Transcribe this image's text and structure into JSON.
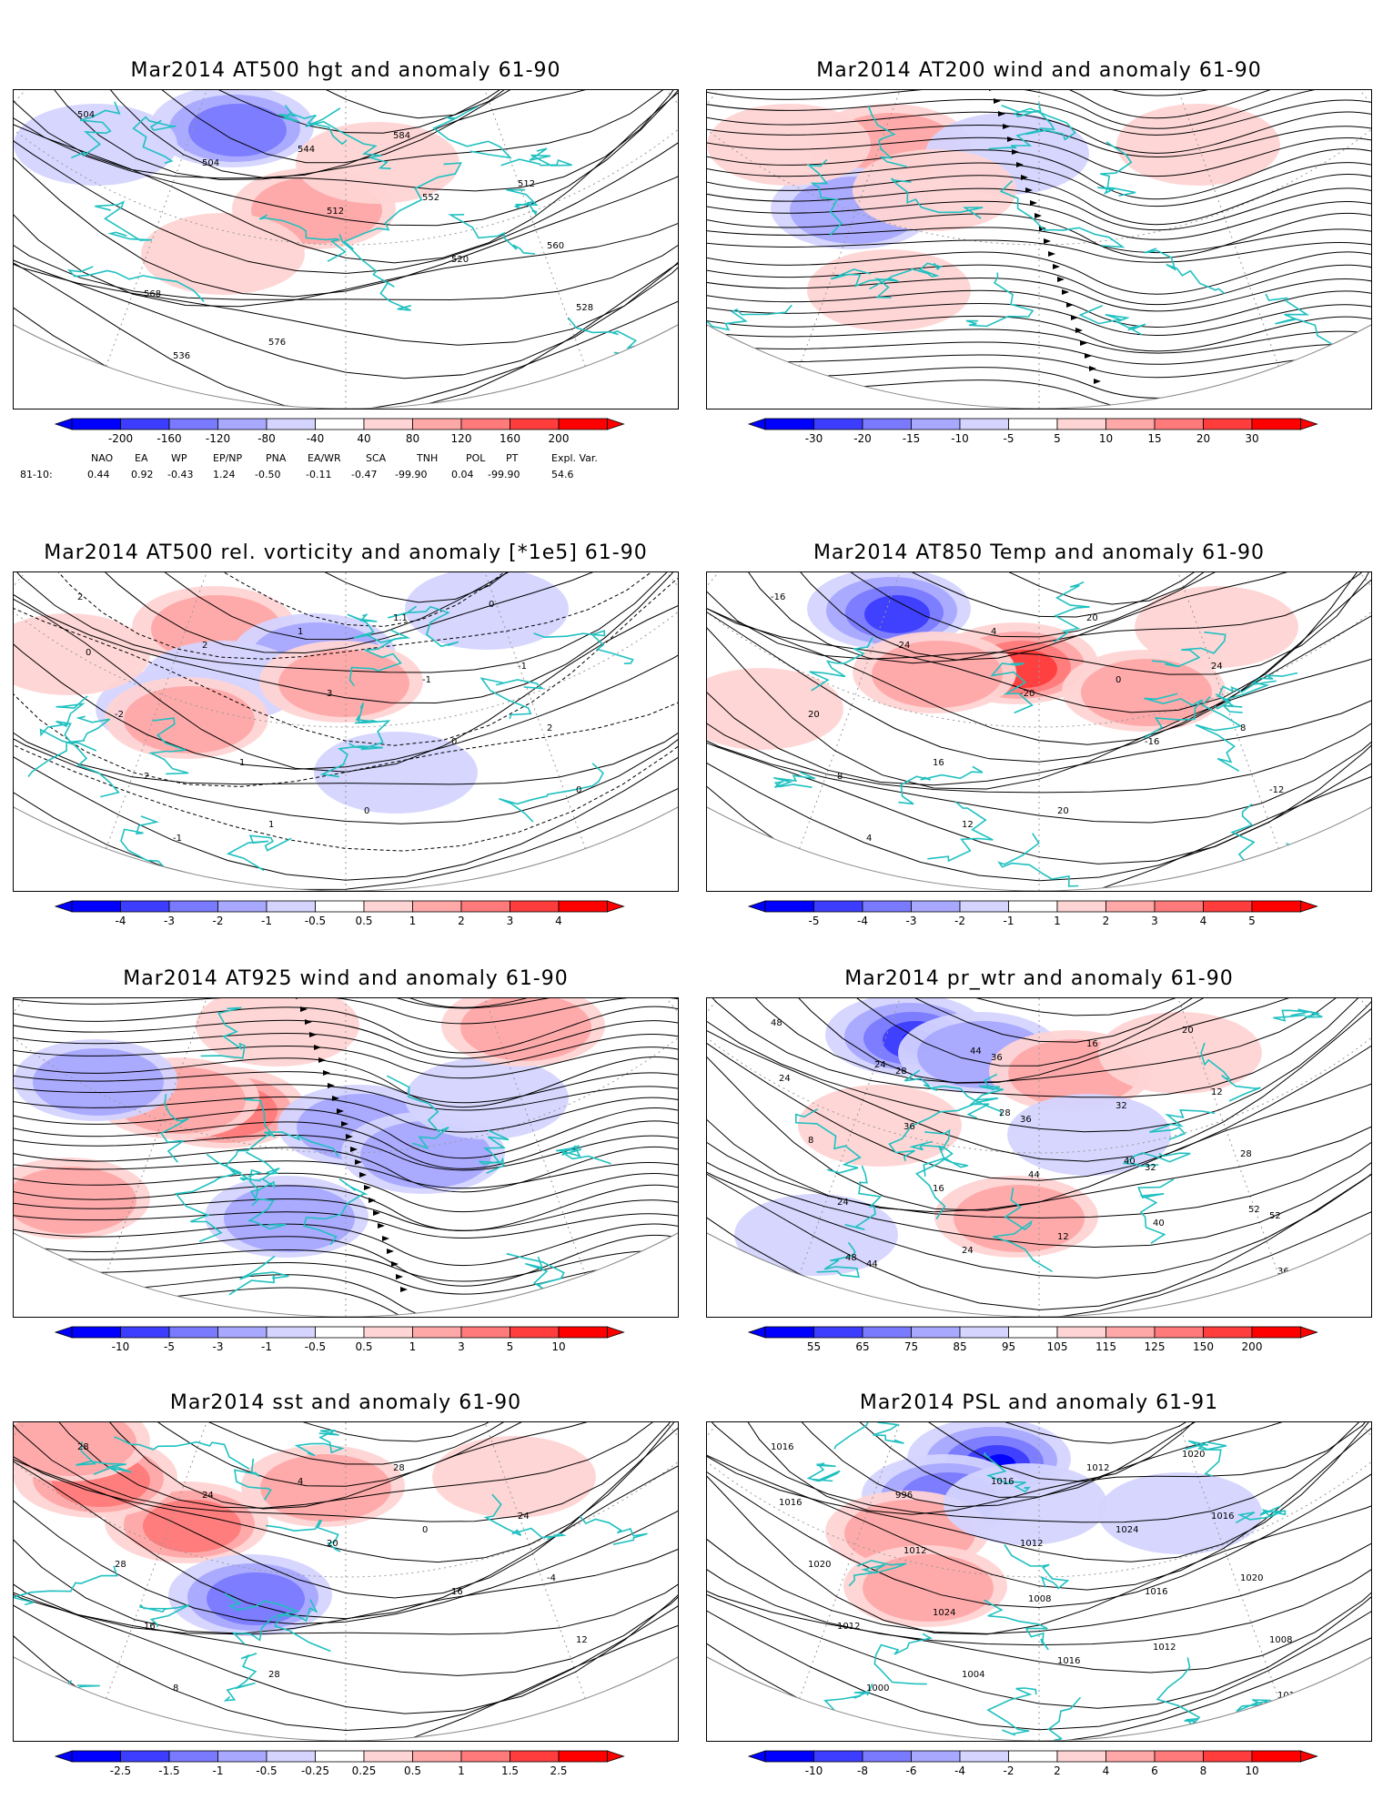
{
  "panels": [
    {
      "id": "p1",
      "title": "Mar2014 AT500 hgt and anomaly 61-90",
      "contour_labels": [
        "504",
        "504",
        "512",
        "520",
        "528",
        "536",
        "544",
        "552",
        "560",
        "568",
        "576",
        "584",
        "512"
      ],
      "colorbar": {
        "labels": [
          "-200",
          "-160",
          "-120",
          "-80",
          "-40",
          "40",
          "80",
          "120",
          "160",
          "200"
        ]
      }
    },
    {
      "id": "p2",
      "title": "Mar2014 AT200 wind and anomaly 61-90",
      "contour_labels": [],
      "colorbar": {
        "labels": [
          "-30",
          "-20",
          "-15",
          "-10",
          "-5",
          "5",
          "10",
          "15",
          "20",
          "30"
        ]
      }
    },
    {
      "id": "p3",
      "title": "Mar2014 AT500 rel. vorticity and anomaly [*1e5] 61-90",
      "contour_labels": [
        "2",
        "2",
        "3",
        "0",
        "0",
        "-1",
        "1",
        "-1",
        "2",
        "2",
        "1",
        "1.1",
        "-1",
        "-2",
        "1",
        "0",
        "0",
        "0"
      ],
      "colorbar": {
        "labels": [
          "-4",
          "-3",
          "-2",
          "-1",
          "-0.5",
          "0.5",
          "1",
          "2",
          "3",
          "4"
        ]
      }
    },
    {
      "id": "p4",
      "title": "Mar2014 AT850 Temp and anomaly 61-90",
      "contour_labels": [
        "-16",
        "-24",
        "-20",
        "-16",
        "-12",
        "4",
        "4",
        "0",
        "8",
        "8",
        "12",
        "20",
        "24",
        "20",
        "16",
        "20"
      ],
      "colorbar": {
        "labels": [
          "-5",
          "-4",
          "-3",
          "-2",
          "-1",
          "1",
          "2",
          "3",
          "4",
          "5"
        ]
      }
    },
    {
      "id": "p5",
      "title": "Mar2014 AT925 wind and anomaly 61-90",
      "contour_labels": [],
      "colorbar": {
        "labels": [
          "-10",
          "-5",
          "-3",
          "-1",
          "-0.5",
          "0.5",
          "1",
          "3",
          "5",
          "10"
        ]
      }
    },
    {
      "id": "p6",
      "title": "Mar2014 pr_wtr and anomaly 61-90",
      "contour_labels": [
        "48",
        "28",
        "36",
        "32",
        "52",
        "44",
        "36",
        "32",
        "28",
        "24",
        "24",
        "16",
        "12",
        "8",
        "16",
        "12",
        "20",
        "24",
        "36",
        "44",
        "40",
        "36",
        "24",
        "28",
        "40",
        "52",
        "48",
        "44"
      ],
      "colorbar": {
        "labels": [
          "55",
          "65",
          "75",
          "85",
          "95",
          "105",
          "115",
          "125",
          "150",
          "200"
        ]
      }
    },
    {
      "id": "p7",
      "title": "Mar2014 sst and anomaly 61-90",
      "contour_labels": [
        "28",
        "24",
        "20",
        "16",
        "12",
        "8",
        "4",
        "0",
        "-4",
        "16",
        "28",
        "28",
        "24",
        "28"
      ],
      "colorbar": {
        "labels": [
          "-2.5",
          "-1.5",
          "-1",
          "-0.5",
          "-0.25",
          "0.25",
          "0.5",
          "1",
          "1.5",
          "2.5"
        ]
      }
    },
    {
      "id": "p8",
      "title": "Mar2014 PSL and anomaly 61-91",
      "contour_labels": [
        "1016",
        "996",
        "1012",
        "1016",
        "1008",
        "1000",
        "1016",
        "1024",
        "1020",
        "1012",
        "1004",
        "1012",
        "1016",
        "1020",
        "1024",
        "1016",
        "1020",
        "1016",
        "1012",
        "1008",
        "1012",
        "1012"
      ],
      "colorbar": {
        "labels": [
          "-10",
          "-8",
          "-6",
          "-4",
          "-2",
          "2",
          "4",
          "6",
          "8",
          "10"
        ]
      }
    }
  ],
  "colorbar_colors": [
    "#0000ff",
    "#3d3dff",
    "#7a7aff",
    "#a8a8ff",
    "#d4d4ff",
    "#ffffff",
    "#ffd4d4",
    "#ffa8a8",
    "#ff7a7a",
    "#ff3d3d",
    "#ff0000"
  ],
  "indices": {
    "headers": [
      "NAO",
      "EA",
      "WP",
      "EP/NP",
      "PNA",
      "EA/WR",
      "SCA",
      "TNH",
      "POL",
      "PT",
      "Expl. Var."
    ],
    "row_label": "81-10:",
    "values": [
      "0.44",
      "0.92",
      "-0.43",
      "1.24",
      "-0.50",
      "-0.11",
      "-0.47",
      "-99.90",
      "0.04",
      "-99.90",
      "54.6"
    ]
  }
}
